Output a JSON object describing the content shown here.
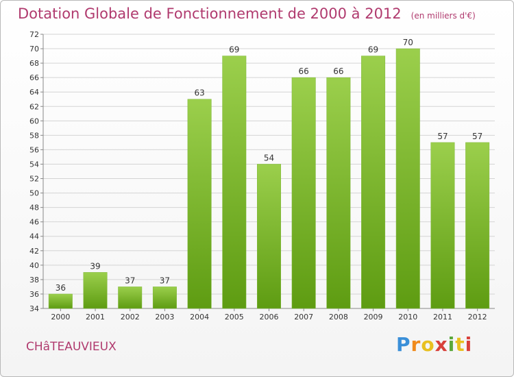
{
  "header": {
    "title": "Dotation Globale de Fonctionnement de 2000 à 2012",
    "unit": "(en milliers d'€)"
  },
  "footer": {
    "commune": "CHâTEAUVIEUX",
    "logo_letters": [
      "P",
      "r",
      "o",
      "x",
      "i",
      "t",
      "i"
    ],
    "logo_colors": [
      "#3a8fd8",
      "#f08a1c",
      "#e8c020",
      "#d8403a",
      "#5aa83a",
      "#e8c020",
      "#d8403a"
    ]
  },
  "chart_data": {
    "type": "bar",
    "title": "Dotation Globale de Fonctionnement de 2000 à 2012",
    "subtitle": "(en milliers d'€)",
    "xlabel": "",
    "ylabel": "",
    "categories": [
      "2000",
      "2001",
      "2002",
      "2003",
      "2004",
      "2005",
      "2006",
      "2007",
      "2008",
      "2009",
      "2010",
      "2011",
      "2012"
    ],
    "values": [
      36,
      39,
      37,
      37,
      63,
      69,
      54,
      66,
      66,
      69,
      70,
      57,
      57
    ],
    "ylim": [
      34,
      72
    ],
    "yticks": [
      34,
      36,
      38,
      40,
      42,
      44,
      46,
      48,
      50,
      52,
      54,
      56,
      58,
      60,
      62,
      64,
      66,
      68,
      70,
      72
    ],
    "grid": true,
    "bar_color_top": "#9bcf4c",
    "bar_color_bottom": "#5e9c12",
    "legend": "none"
  }
}
